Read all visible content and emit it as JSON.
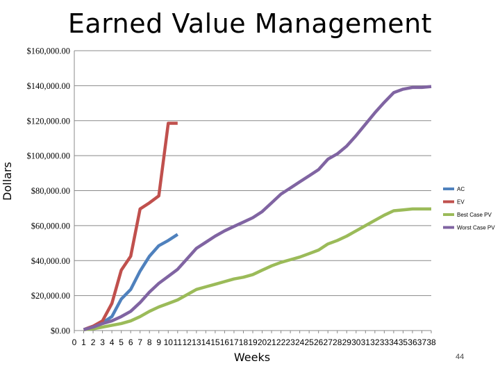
{
  "slide": {
    "title": "Earned Value Management",
    "page_number": "44"
  },
  "chart_data": {
    "type": "line",
    "xlabel": "Weeks",
    "ylabel": "Dollars",
    "ylim": [
      0,
      160000
    ],
    "xlim": [
      0,
      38
    ],
    "y_ticks": [
      "$0.00",
      "$20,000.00",
      "$40,000.00",
      "$60,000.00",
      "$80,000.00",
      "$100,000.00",
      "$120,000.00",
      "$140,000.00",
      "$160,000.00"
    ],
    "y_tick_values": [
      0,
      20000,
      40000,
      60000,
      80000,
      100000,
      120000,
      140000,
      160000
    ],
    "x_ticks": [
      "0",
      "1",
      "2",
      "3",
      "4",
      "5",
      "6",
      "7",
      "8",
      "9",
      "10",
      "11",
      "12",
      "13",
      "14",
      "15",
      "16",
      "17",
      "18",
      "19",
      "20",
      "21",
      "22",
      "23",
      "24",
      "25",
      "26",
      "27",
      "28",
      "29",
      "30",
      "31",
      "32",
      "33",
      "34",
      "35",
      "36",
      "37",
      "38"
    ],
    "grid": "horizontal",
    "legend_position": "right",
    "series": [
      {
        "name": "AC",
        "color": "#4f81bd",
        "x": [
          1,
          2,
          3,
          4,
          5,
          6,
          7,
          8,
          9,
          10,
          11
        ],
        "y": [
          500,
          2500,
          4500,
          8000,
          18000,
          23500,
          34000,
          42500,
          48500,
          51500,
          55000
        ]
      },
      {
        "name": "EV",
        "color": "#c0504d",
        "x": [
          1,
          2,
          3,
          4,
          5,
          6,
          7,
          8,
          9,
          10,
          11
        ],
        "y": [
          500,
          2500,
          5500,
          15500,
          34500,
          42500,
          69500,
          73000,
          77000,
          118500,
          118500
        ]
      },
      {
        "name": "Best Case PV",
        "color": "#9bbb59",
        "x": [
          1,
          2,
          3,
          4,
          5,
          6,
          7,
          8,
          9,
          10,
          11,
          12,
          13,
          14,
          15,
          16,
          17,
          18,
          19,
          20,
          21,
          22,
          23,
          24,
          25,
          26,
          27,
          28,
          29,
          30,
          31,
          32,
          33,
          34,
          35,
          36,
          37,
          38
        ],
        "y": [
          500,
          1000,
          2000,
          3000,
          4000,
          5500,
          8000,
          11000,
          13500,
          15500,
          17500,
          20500,
          23500,
          25000,
          26500,
          28000,
          29500,
          30500,
          32000,
          34500,
          37000,
          39000,
          40500,
          42000,
          44000,
          46000,
          49500,
          51500,
          54000,
          57000,
          60000,
          63000,
          66000,
          68500,
          69000,
          69500,
          69500,
          69500
        ]
      },
      {
        "name": "Worst Case PV",
        "color": "#8064a2",
        "x": [
          1,
          2,
          3,
          4,
          5,
          6,
          7,
          8,
          9,
          10,
          11,
          12,
          13,
          14,
          15,
          16,
          17,
          18,
          19,
          20,
          21,
          22,
          23,
          24,
          25,
          26,
          27,
          28,
          29,
          30,
          31,
          32,
          33,
          34,
          35,
          36,
          37,
          38
        ],
        "y": [
          500,
          2000,
          4000,
          5500,
          8000,
          11000,
          16000,
          22000,
          27000,
          31000,
          35000,
          41000,
          47000,
          50500,
          54000,
          57000,
          59500,
          62000,
          64500,
          68000,
          73000,
          78000,
          81500,
          85000,
          88500,
          92000,
          98000,
          101000,
          105500,
          111500,
          118000,
          124500,
          130500,
          136000,
          138000,
          139000,
          139000,
          139500
        ]
      }
    ]
  }
}
